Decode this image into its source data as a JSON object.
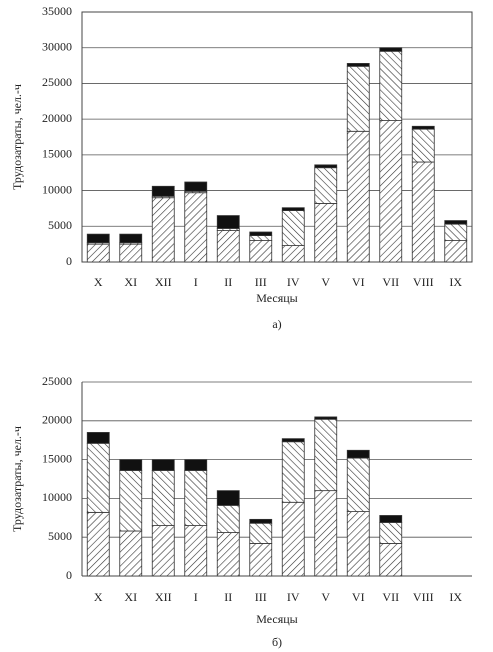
{
  "chart_data": [
    {
      "type": "bar",
      "stacked": true,
      "ylabel": "Трудозатраты, чел.-ч",
      "xlabel": "Месяцы",
      "caption": "а)",
      "categories": [
        "X",
        "XI",
        "XII",
        "I",
        "II",
        "III",
        "IV",
        "V",
        "VI",
        "VII",
        "VIII",
        "IX"
      ],
      "ylim": [
        0,
        35000
      ],
      "yticks": [
        0,
        5000,
        10000,
        15000,
        20000,
        25000,
        30000,
        35000
      ],
      "grid": true,
      "frame": true,
      "series": [
        {
          "pattern": "hatch-right",
          "color": "#333333",
          "values": [
            2500,
            2500,
            9000,
            9700,
            4400,
            3000,
            2300,
            8200,
            18300,
            19800,
            14000,
            3000
          ]
        },
        {
          "pattern": "hatch-left",
          "color": "#333333",
          "values": [
            200,
            200,
            200,
            200,
            300,
            700,
            4900,
            5000,
            9100,
            9700,
            4600,
            2300
          ]
        },
        {
          "pattern": "solid",
          "color": "#111111",
          "values": [
            1200,
            1200,
            1400,
            1300,
            1800,
            500,
            400,
            400,
            400,
            500,
            400,
            500
          ]
        }
      ]
    },
    {
      "type": "bar",
      "stacked": true,
      "ylabel": "Трудозатраты, чел.-ч",
      "xlabel": "Месяцы",
      "caption": "б)",
      "categories": [
        "X",
        "XI",
        "XII",
        "I",
        "II",
        "III",
        "IV",
        "V",
        "VI",
        "VII",
        "VIII",
        "IX"
      ],
      "ylim": [
        0,
        25000
      ],
      "yticks": [
        0,
        5000,
        10000,
        15000,
        20000,
        25000
      ],
      "grid": true,
      "frame": false,
      "series": [
        {
          "pattern": "hatch-right",
          "color": "#333333",
          "values": [
            8200,
            5800,
            6500,
            6500,
            5600,
            4200,
            9500,
            11000,
            8300,
            4200,
            0,
            0
          ]
        },
        {
          "pattern": "hatch-left",
          "color": "#333333",
          "values": [
            8900,
            7800,
            7100,
            7100,
            3500,
            2600,
            7800,
            9200,
            6900,
            2700,
            0,
            0
          ]
        },
        {
          "pattern": "solid",
          "color": "#111111",
          "values": [
            1400,
            1400,
            1400,
            1400,
            1900,
            500,
            400,
            300,
            1000,
            900,
            0,
            0
          ]
        }
      ]
    }
  ]
}
